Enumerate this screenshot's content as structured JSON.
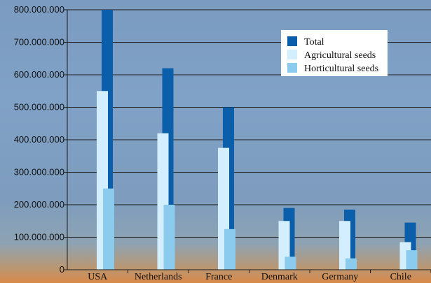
{
  "chart_data": {
    "type": "bar",
    "title": "",
    "xlabel": "",
    "ylabel": "",
    "categories": [
      "USA",
      "Netherlands",
      "France",
      "Denmark",
      "Germany",
      "Chile"
    ],
    "series": [
      {
        "name": "Total",
        "color": "#0a5eaa",
        "values": [
          800000000,
          620000000,
          500000000,
          190000000,
          185000000,
          145000000
        ]
      },
      {
        "name": "Agricultural seeds",
        "color": "#d3efff",
        "values": [
          550000000,
          420000000,
          375000000,
          150000000,
          150000000,
          85000000
        ]
      },
      {
        "name": "Horticultural seeds",
        "color": "#8bcbee",
        "values": [
          250000000,
          200000000,
          125000000,
          40000000,
          35000000,
          60000000
        ]
      }
    ],
    "ylim": [
      0,
      800000000
    ],
    "yticks": [
      0,
      100000000,
      200000000,
      300000000,
      400000000,
      500000000,
      600000000,
      700000000,
      800000000
    ],
    "ytick_labels": [
      "0",
      "100.000.000",
      "200.000.000",
      "300.000.000",
      "400.000.000",
      "500.000.000",
      "600.000.000",
      "700.000.000",
      "800.000.000"
    ],
    "grid": true,
    "legend_position": "top-right"
  }
}
